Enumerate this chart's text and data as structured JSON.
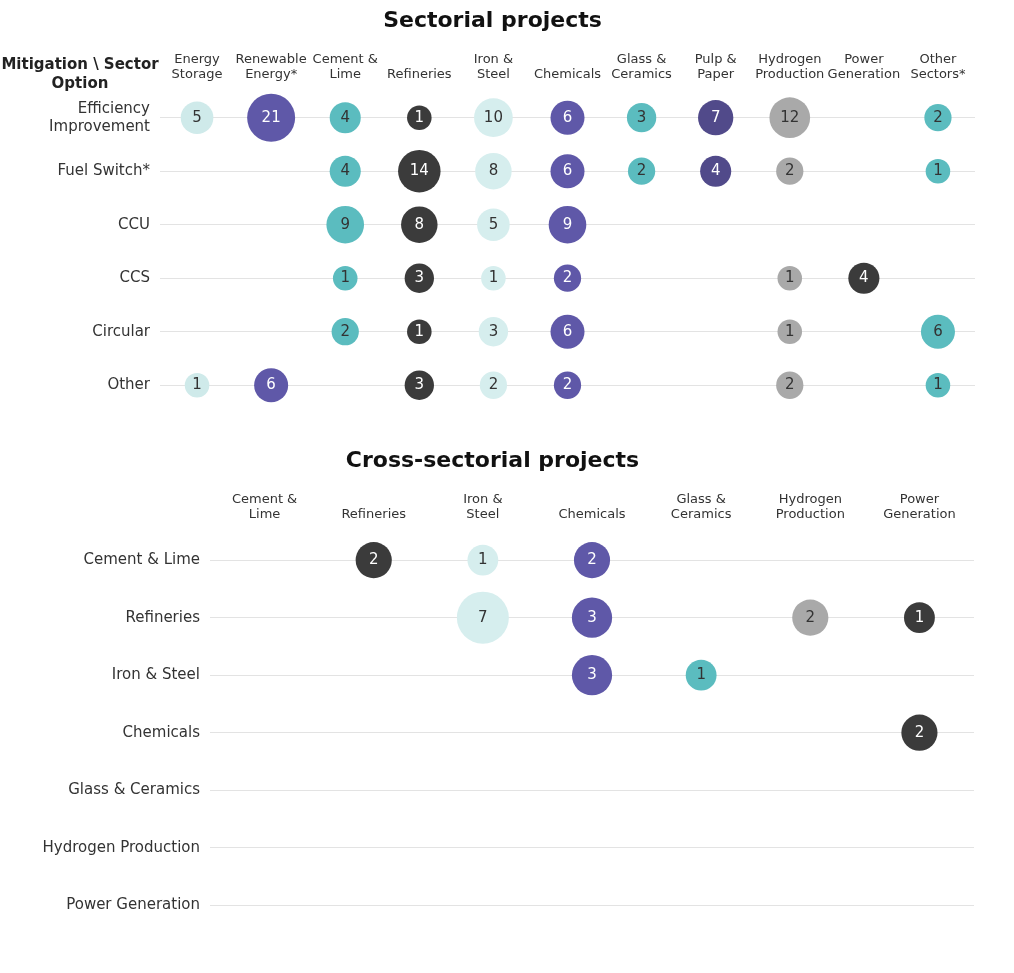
{
  "chart_data": [
    {
      "type": "heatmap",
      "title": "Sectorial projects",
      "ylabel": "Mitigation \\ Sector Option",
      "grid": "y",
      "data_labels": true,
      "categories": [
        "Energy Storage",
        "Renewable Energy*",
        "Cement & Lime",
        "Refineries",
        "Iron & Steel",
        "Chemicals",
        "Glass & Ceramics",
        "Pulp & Paper",
        "Hydrogen Production",
        "Power Generation",
        "Other Sectors*"
      ],
      "colors": [
        "#cfeaea",
        "#5f58a8",
        "#5bbcbf",
        "#3b3b3b",
        "#d6eeee",
        "#5f58a8",
        "#5bbcbf",
        "#514a8a",
        "#a9a9a9",
        "#3b3b3b",
        "#5bbcbf"
      ],
      "y_categories": [
        "Efficiency Improvement",
        "Fuel Switch*",
        "CCU",
        "CCS",
        "Circular",
        "Other"
      ],
      "cells": [
        [
          5,
          21,
          4,
          1,
          10,
          6,
          3,
          7,
          12,
          null,
          2
        ],
        [
          null,
          null,
          4,
          14,
          8,
          6,
          2,
          4,
          2,
          null,
          1
        ],
        [
          null,
          null,
          9,
          8,
          5,
          9,
          null,
          null,
          null,
          null,
          null
        ],
        [
          null,
          null,
          1,
          3,
          1,
          2,
          null,
          null,
          1,
          4,
          null
        ],
        [
          null,
          null,
          2,
          1,
          3,
          6,
          null,
          null,
          1,
          null,
          6
        ],
        [
          1,
          6,
          null,
          3,
          2,
          2,
          null,
          null,
          2,
          null,
          1
        ]
      ]
    },
    {
      "type": "heatmap",
      "title": "Cross-sectorial projects",
      "grid": "y",
      "data_labels": true,
      "categories": [
        "Cement & Lime",
        "Refineries",
        "Iron & Steel",
        "Chemicals",
        "Glass & Ceramics",
        "Hydrogen Production",
        "Power Generation"
      ],
      "colors": [
        "#5bbcbf",
        "#3b3b3b",
        "#d6eeee",
        "#5f58a8",
        "#5bbcbf",
        "#a9a9a9",
        "#3b3b3b"
      ],
      "y_categories": [
        "Cement & Lime",
        "Refineries",
        "Iron & Steel",
        "Chemicals",
        "Glass & Ceramics",
        "Hydrogen Production",
        "Power Generation"
      ],
      "cells": [
        [
          null,
          2,
          1,
          2,
          null,
          null,
          null
        ],
        [
          null,
          null,
          7,
          3,
          null,
          2,
          1
        ],
        [
          null,
          null,
          null,
          3,
          1,
          null,
          null
        ],
        [
          null,
          null,
          null,
          null,
          null,
          null,
          2
        ],
        [
          null,
          null,
          null,
          null,
          null,
          null,
          null
        ],
        [
          null,
          null,
          null,
          null,
          null,
          null,
          null
        ],
        [
          null,
          null,
          null,
          null,
          null,
          null,
          null
        ]
      ]
    }
  ]
}
